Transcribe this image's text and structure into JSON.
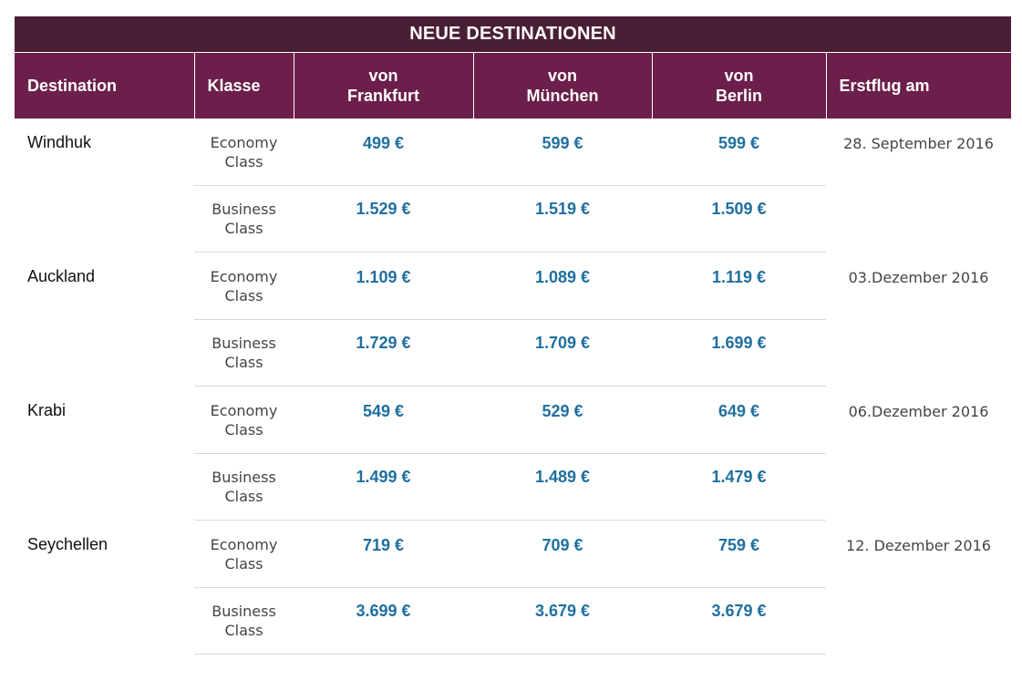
{
  "title": "NEUE DESTINATIONEN",
  "headers": {
    "destination": "Destination",
    "klasse": "Klasse",
    "frankfurt_top": "von",
    "frankfurt_bottom": "Frankfurt",
    "muenchen_top": "von",
    "muenchen_bottom": "München",
    "berlin_top": "von",
    "berlin_bottom": "Berlin",
    "erstflug": "Erstflug am"
  },
  "colors": {
    "title_bg": "#4a1e36",
    "header_bg": "#6b1f4a",
    "price": "#1f6fa0"
  },
  "rows": [
    {
      "destination": "Windhuk",
      "first_flight": "28. September 2016",
      "economy": {
        "label_1": "Economy",
        "label_2": "Class",
        "frankfurt": "499 €",
        "muenchen": "599 €",
        "berlin": "599 €"
      },
      "business": {
        "label_1": "Business",
        "label_2": "Class",
        "frankfurt": "1.529 €",
        "muenchen": "1.519 €",
        "berlin": "1.509 €"
      }
    },
    {
      "destination": "Auckland",
      "first_flight": "03.Dezember 2016",
      "economy": {
        "label_1": "Economy",
        "label_2": "Class",
        "frankfurt": "1.109 €",
        "muenchen": "1.089 €",
        "berlin": "1.119 €"
      },
      "business": {
        "label_1": "Business",
        "label_2": "Class",
        "frankfurt": "1.729 €",
        "muenchen": "1.709 €",
        "berlin": "1.699 €"
      }
    },
    {
      "destination": "Krabi",
      "first_flight": "06.Dezember 2016",
      "economy": {
        "label_1": "Economy",
        "label_2": "Class",
        "frankfurt": "549 €",
        "muenchen": "529 €",
        "berlin": "649 €"
      },
      "business": {
        "label_1": "Business",
        "label_2": "Class",
        "frankfurt": "1.499 €",
        "muenchen": "1.489 €",
        "berlin": "1.479 €"
      }
    },
    {
      "destination": "Seychellen",
      "first_flight": "12. Dezember 2016",
      "economy": {
        "label_1": "Economy",
        "label_2": "Class",
        "frankfurt": "719 €",
        "muenchen": "709 €",
        "berlin": "759 €"
      },
      "business": {
        "label_1": "Business",
        "label_2": "Class",
        "frankfurt": "3.699 €",
        "muenchen": "3.679 €",
        "berlin": "3.679 €"
      }
    }
  ]
}
